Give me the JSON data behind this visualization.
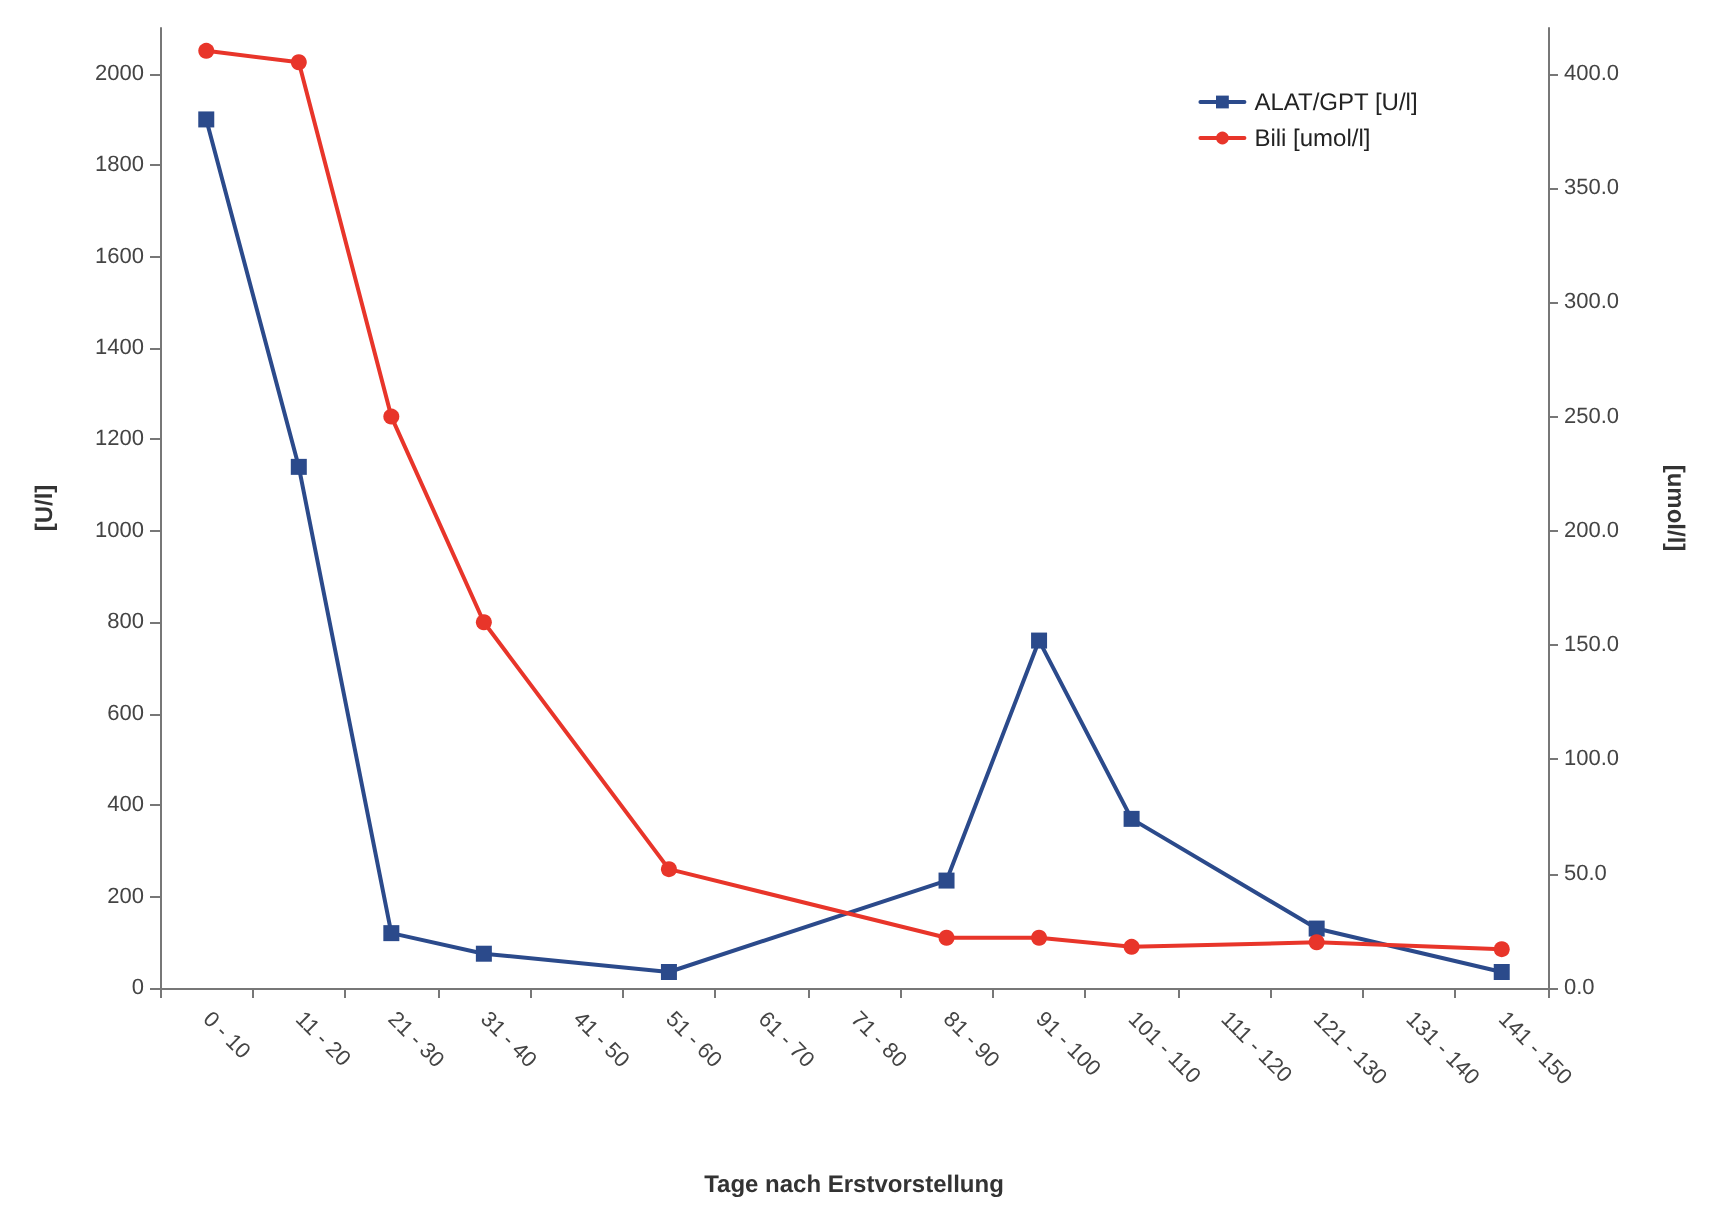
{
  "chart_data": {
    "type": "line",
    "xlabel": "Tage nach Erstvorstellung",
    "ylabel": "[U/l]",
    "y2label": "[umol/l]",
    "categories": [
      "0 - 10",
      "11 - 20",
      "21 - 30",
      "31 - 40",
      "41 - 50",
      "51 - 60",
      "61 - 70",
      "71 - 80",
      "81 - 90",
      "91 - 100",
      "101 - 110",
      "111 - 120",
      "121 - 130",
      "131 - 140",
      "141 - 150"
    ],
    "series": [
      {
        "name": "ALAT/GPT [U/l]",
        "color": "#2b4a8b",
        "marker": "square",
        "values": [
          1900,
          1140,
          120,
          75,
          null,
          35,
          null,
          null,
          235,
          760,
          370,
          null,
          130,
          null,
          35
        ]
      },
      {
        "name": "Bili [umol/l]",
        "color": "#e8352a",
        "marker": "circle",
        "axis": "y2",
        "values": [
          410,
          405,
          250,
          160,
          null,
          52,
          null,
          null,
          22,
          22,
          18,
          null,
          20,
          null,
          17
        ]
      }
    ],
    "ylim": [
      0,
      2100
    ],
    "yticks": [
      0,
      200,
      400,
      600,
      800,
      1000,
      1200,
      1400,
      1600,
      1800,
      2000
    ],
    "y2lim": [
      0,
      420
    ],
    "y2ticks": [
      {
        "value": 0,
        "label": "0.0"
      },
      {
        "value": 50,
        "label": "50.0"
      },
      {
        "value": 100,
        "label": "100.0"
      },
      {
        "value": 150,
        "label": "150.0"
      },
      {
        "value": 200,
        "label": "200.0"
      },
      {
        "value": 250,
        "label": "250.0"
      },
      {
        "value": 300,
        "label": "300.0"
      },
      {
        "value": 350,
        "label": "350.0"
      },
      {
        "value": 400,
        "label": "400.0"
      }
    ],
    "grid": false,
    "legend": "top right",
    "line_style": "solid"
  }
}
